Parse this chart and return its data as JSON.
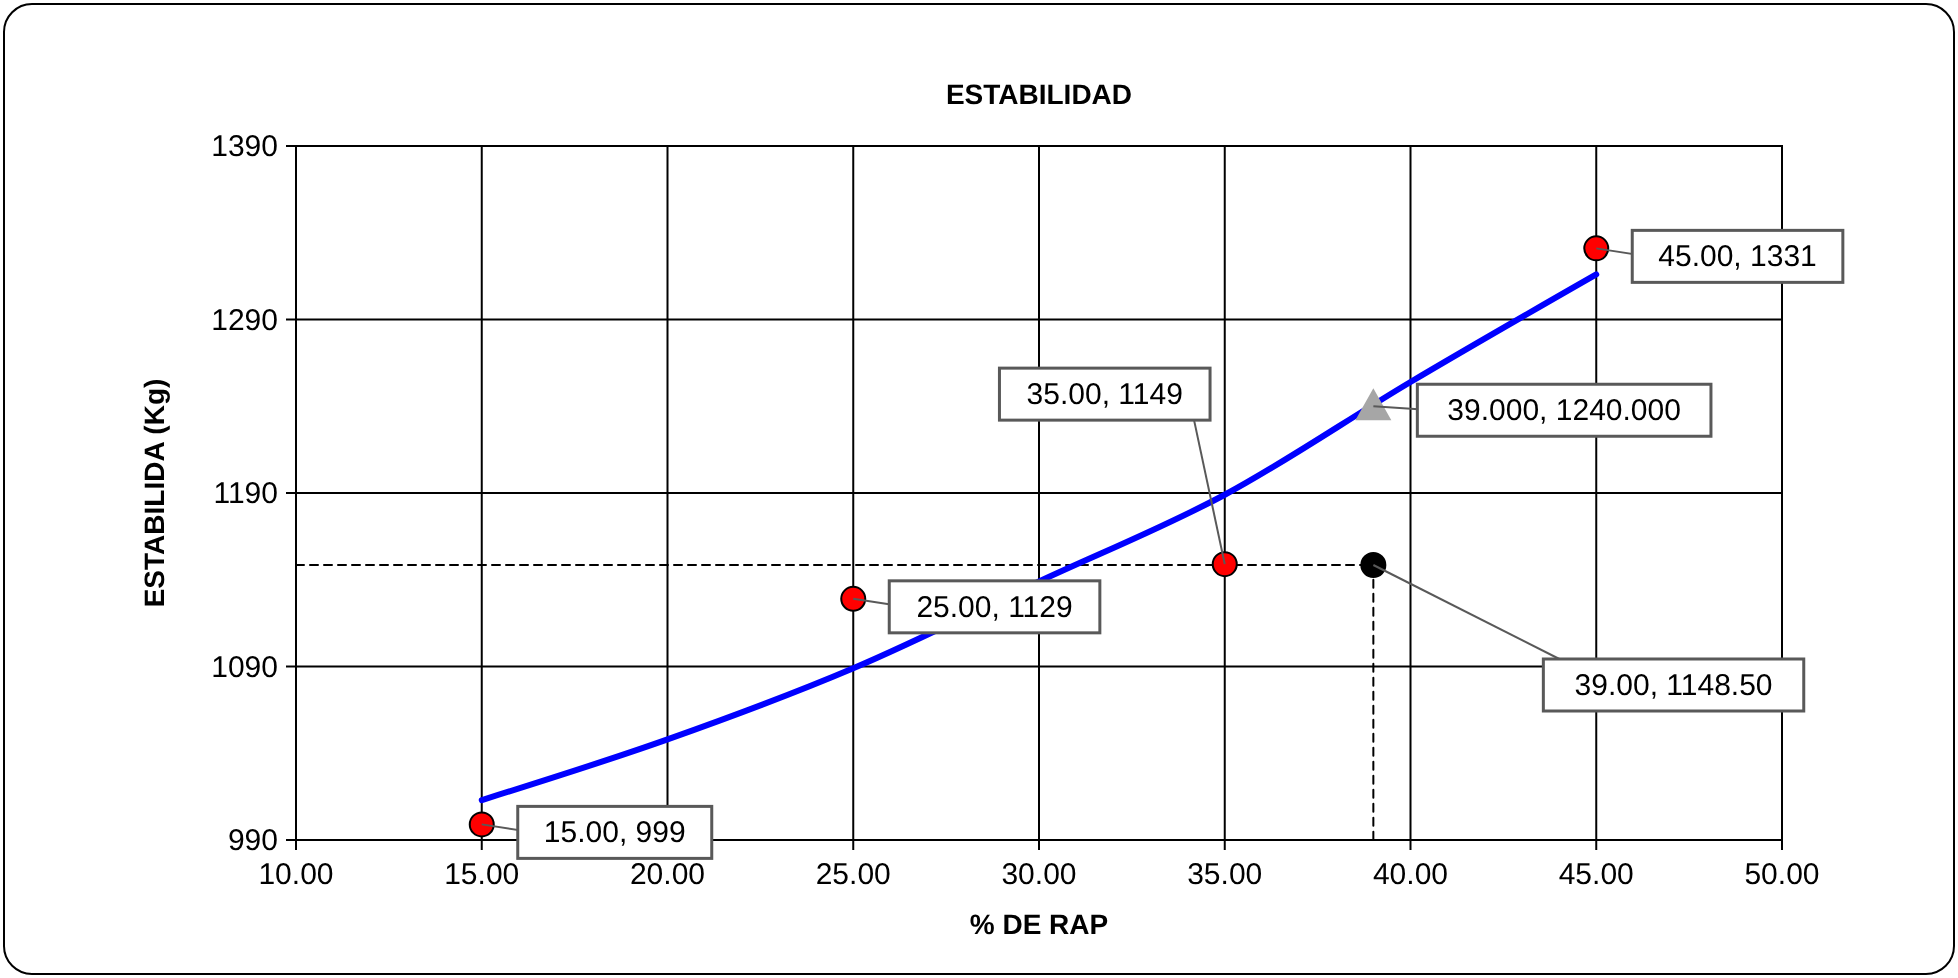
{
  "chart_data": {
    "type": "scatter",
    "title": "ESTABILIDAD",
    "xlabel": "% DE RAP",
    "ylabel": "ESTABILIDA (Kg)",
    "xlim": [
      10,
      50
    ],
    "xticks": [
      {
        "value": 10,
        "label": "10.00"
      },
      {
        "value": 15,
        "label": "15.00"
      },
      {
        "value": 20,
        "label": "20.00"
      },
      {
        "value": 25,
        "label": "25.00"
      },
      {
        "value": 30,
        "label": "30.00"
      },
      {
        "value": 35,
        "label": "35.00"
      },
      {
        "value": 40,
        "label": "40.00"
      },
      {
        "value": 45,
        "label": "45.00"
      },
      {
        "value": 50,
        "label": "50.00"
      }
    ],
    "ylim": [
      990,
      1390
    ],
    "yticks": [
      990,
      1090,
      1190,
      1290,
      1390
    ],
    "grid": true,
    "series": [
      {
        "type": "line",
        "color": "#000000",
        "line_style": "dashed",
        "marker": "none",
        "x": [
          10,
          39,
          39
        ],
        "values": [
          1148.5,
          1148.5,
          990
        ]
      },
      {
        "type": "line",
        "color": "#0000ff",
        "marker": "none",
        "line_style": "solid",
        "x": [
          15,
          20,
          25,
          30,
          35,
          40,
          45
        ],
        "values": [
          1013,
          1048,
          1089,
          1139,
          1189,
          1254,
          1316
        ]
      },
      {
        "color": "#ff0000",
        "marker": "circle",
        "x": [
          15,
          25,
          35,
          45
        ],
        "values": [
          999,
          1129,
          1149,
          1331
        ],
        "value_labels": [
          "15.00, 999",
          "25.00, 1129",
          "35.00, 1149",
          "45.00, 1331"
        ]
      },
      {
        "color": "#a6a6a6",
        "marker": "triangle",
        "x": [
          39
        ],
        "values": [
          1240
        ],
        "value_labels": [
          "39.000, 1240.000"
        ]
      },
      {
        "color": "#000000",
        "marker": "circle",
        "x": [
          39
        ],
        "values": [
          1148.5
        ],
        "value_labels": [
          "39.00, 1148.50"
        ]
      }
    ]
  }
}
